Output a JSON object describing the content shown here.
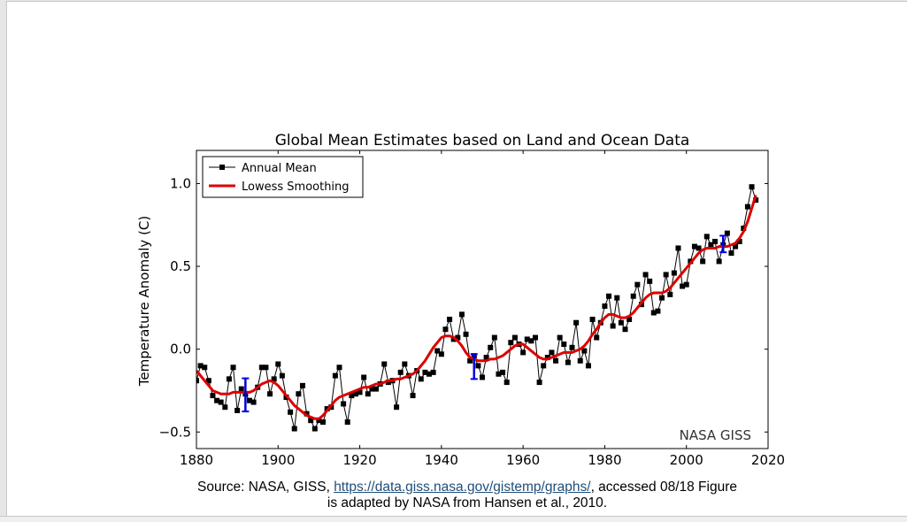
{
  "caption": {
    "prefix": "Source: NASA, GISS, ",
    "link": "https://data.giss.nasa.gov/gistemp/graphs/",
    "suffix": ", accessed 08/18 Figure",
    "line2": "is adapted by NASA from Hansen et al., 2010."
  },
  "chart_data": {
    "type": "line",
    "title": "Global Mean Estimates based on Land and Ocean Data",
    "xlabel": "",
    "ylabel": "Temperature Anomaly (C)",
    "xlim": [
      1880,
      2020
    ],
    "ylim": [
      -0.6,
      1.2
    ],
    "xticks": [
      1880,
      1900,
      1920,
      1940,
      1960,
      1980,
      2000,
      2020
    ],
    "xtick_labels": [
      "1880",
      "1900",
      "1920",
      "1940",
      "1960",
      "1980",
      "2000",
      "2020"
    ],
    "yticks": [
      -0.5,
      0.0,
      0.5,
      1.0
    ],
    "ytick_labels": [
      "−0.5",
      "0.0",
      "0.5",
      "1.0"
    ],
    "grid": false,
    "legend": {
      "placement": "top-left",
      "entries": [
        "Annual Mean",
        "Lowess Smoothing"
      ]
    },
    "annotation": "NASA GISS",
    "colors": {
      "annual": "#000000",
      "lowess": "#dd0000",
      "errorbar": "#0000dd"
    },
    "x_start": 1880,
    "series": [
      {
        "name": "Annual Mean",
        "style": "line-square-markers",
        "values": [
          -0.19,
          -0.1,
          -0.11,
          -0.19,
          -0.28,
          -0.31,
          -0.32,
          -0.35,
          -0.18,
          -0.11,
          -0.37,
          -0.24,
          -0.27,
          -0.31,
          -0.32,
          -0.23,
          -0.11,
          -0.11,
          -0.27,
          -0.18,
          -0.09,
          -0.16,
          -0.29,
          -0.38,
          -0.48,
          -0.27,
          -0.22,
          -0.39,
          -0.43,
          -0.48,
          -0.43,
          -0.44,
          -0.36,
          -0.35,
          -0.16,
          -0.11,
          -0.33,
          -0.44,
          -0.28,
          -0.27,
          -0.26,
          -0.17,
          -0.27,
          -0.24,
          -0.24,
          -0.21,
          -0.09,
          -0.2,
          -0.19,
          -0.35,
          -0.14,
          -0.09,
          -0.16,
          -0.28,
          -0.13,
          -0.18,
          -0.14,
          -0.15,
          -0.14,
          -0.01,
          -0.03,
          0.12,
          0.18,
          0.06,
          0.07,
          0.21,
          0.09,
          -0.07,
          -0.04,
          -0.1,
          -0.17,
          -0.05,
          0.01,
          0.07,
          -0.15,
          -0.14,
          -0.2,
          0.04,
          0.07,
          0.03,
          -0.02,
          0.06,
          0.05,
          0.07,
          -0.2,
          -0.1,
          -0.05,
          -0.02,
          -0.07,
          0.07,
          0.03,
          -0.08,
          0.01,
          0.16,
          -0.07,
          -0.01,
          -0.1,
          0.18,
          0.07,
          0.16,
          0.26,
          0.32,
          0.14,
          0.31,
          0.16,
          0.12,
          0.18,
          0.32,
          0.39,
          0.27,
          0.45,
          0.41,
          0.22,
          0.23,
          0.31,
          0.45,
          0.33,
          0.46,
          0.61,
          0.38,
          0.39,
          0.53,
          0.62,
          0.61,
          0.53,
          0.68,
          0.63,
          0.65,
          0.53,
          0.63,
          0.7,
          0.58,
          0.62,
          0.65,
          0.73,
          0.86,
          0.98,
          0.9
        ]
      },
      {
        "name": "Lowess Smoothing",
        "style": "line",
        "values": [
          -0.13,
          -0.16,
          -0.19,
          -0.22,
          -0.25,
          -0.26,
          -0.27,
          -0.27,
          -0.27,
          -0.26,
          -0.26,
          -0.26,
          -0.26,
          -0.26,
          -0.25,
          -0.23,
          -0.21,
          -0.2,
          -0.19,
          -0.2,
          -0.22,
          -0.25,
          -0.28,
          -0.31,
          -0.34,
          -0.36,
          -0.38,
          -0.4,
          -0.41,
          -0.42,
          -0.42,
          -0.4,
          -0.37,
          -0.34,
          -0.31,
          -0.29,
          -0.28,
          -0.27,
          -0.26,
          -0.25,
          -0.24,
          -0.23,
          -0.23,
          -0.22,
          -0.21,
          -0.21,
          -0.2,
          -0.19,
          -0.19,
          -0.18,
          -0.18,
          -0.17,
          -0.16,
          -0.15,
          -0.13,
          -0.1,
          -0.07,
          -0.03,
          0.01,
          0.04,
          0.07,
          0.08,
          0.08,
          0.07,
          0.05,
          0.02,
          -0.02,
          -0.05,
          -0.06,
          -0.07,
          -0.07,
          -0.07,
          -0.06,
          -0.06,
          -0.05,
          -0.04,
          -0.02,
          0.0,
          0.02,
          0.03,
          0.03,
          0.01,
          -0.01,
          -0.03,
          -0.05,
          -0.06,
          -0.06,
          -0.05,
          -0.04,
          -0.03,
          -0.02,
          -0.02,
          -0.02,
          -0.01,
          0.0,
          0.02,
          0.05,
          0.09,
          0.12,
          0.16,
          0.19,
          0.21,
          0.21,
          0.2,
          0.19,
          0.19,
          0.2,
          0.22,
          0.25,
          0.28,
          0.31,
          0.33,
          0.34,
          0.34,
          0.34,
          0.35,
          0.37,
          0.4,
          0.43,
          0.46,
          0.49,
          0.52,
          0.55,
          0.58,
          0.6,
          0.61,
          0.61,
          0.61,
          0.62,
          0.62,
          0.62,
          0.63,
          0.64,
          0.67,
          0.71,
          0.77,
          0.85,
          0.93
        ]
      }
    ],
    "error_bars": [
      {
        "x": 1892,
        "y": -0.276,
        "err": 0.1
      },
      {
        "x": 1948,
        "y": -0.105,
        "err": 0.075
      },
      {
        "x": 2009,
        "y": 0.635,
        "err": 0.05
      }
    ]
  }
}
